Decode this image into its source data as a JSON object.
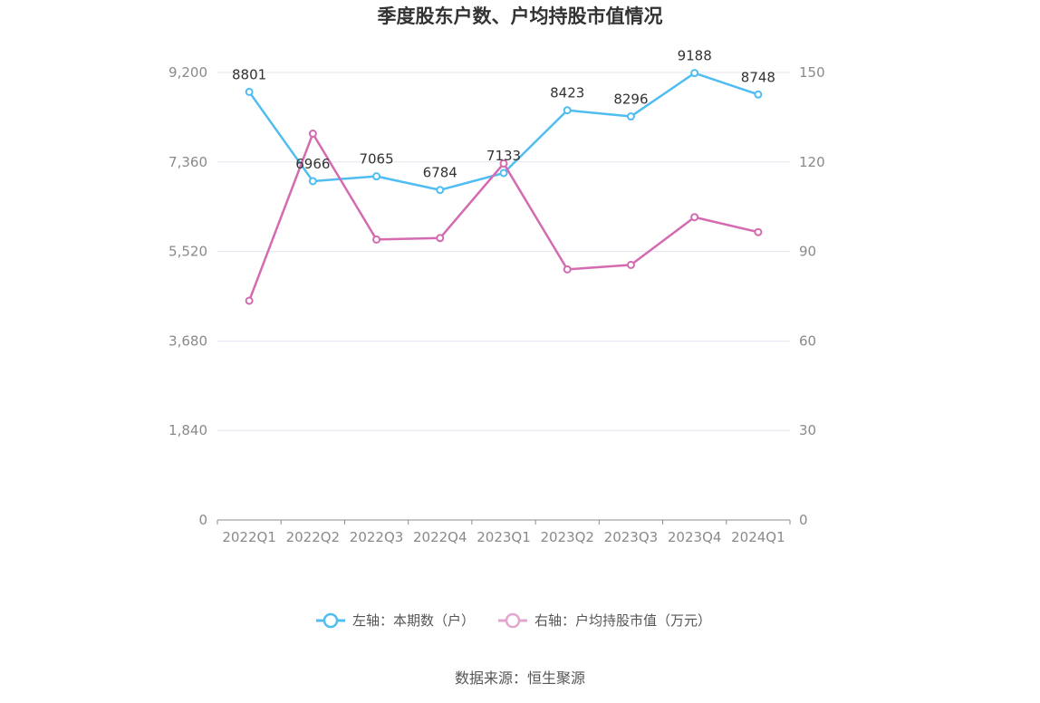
{
  "chart_data": {
    "type": "line",
    "title": "季度股东户数、户均持股市值情况",
    "categories": [
      "2022Q1",
      "2022Q2",
      "2022Q3",
      "2022Q4",
      "2023Q1",
      "2023Q2",
      "2023Q3",
      "2023Q4",
      "2024Q1"
    ],
    "series": [
      {
        "name": "左轴：本期数（户）",
        "axis": "left",
        "color": "#4fbdf2",
        "values": [
          8801,
          6966,
          7065,
          6784,
          7133,
          8423,
          8296,
          9188,
          8748
        ],
        "value_labels": [
          "8801",
          "6966",
          "7065",
          "6784",
          "7133",
          "8423",
          "8296",
          "9188",
          "8748"
        ]
      },
      {
        "name": "右轴：户均持股市值（万元）",
        "axis": "right",
        "color": "#d46bb0",
        "values": [
          73.5,
          129.5,
          94.0,
          94.5,
          119.5,
          84.0,
          85.5,
          101.5,
          96.5
        ]
      }
    ],
    "y_left": {
      "min": 0,
      "max": 9200,
      "ticks": [
        "0",
        "1,840",
        "3,680",
        "5,520",
        "7,360",
        "9,200"
      ]
    },
    "y_right": {
      "min": 0,
      "max": 150,
      "ticks": [
        "0",
        "30",
        "60",
        "90",
        "120",
        "150"
      ]
    },
    "grid": true,
    "legend_position": "bottom",
    "legend_left_color": "#4fbdf2",
    "legend_right_color": "#e3a6cf"
  },
  "source_text": "数据来源：恒生聚源"
}
